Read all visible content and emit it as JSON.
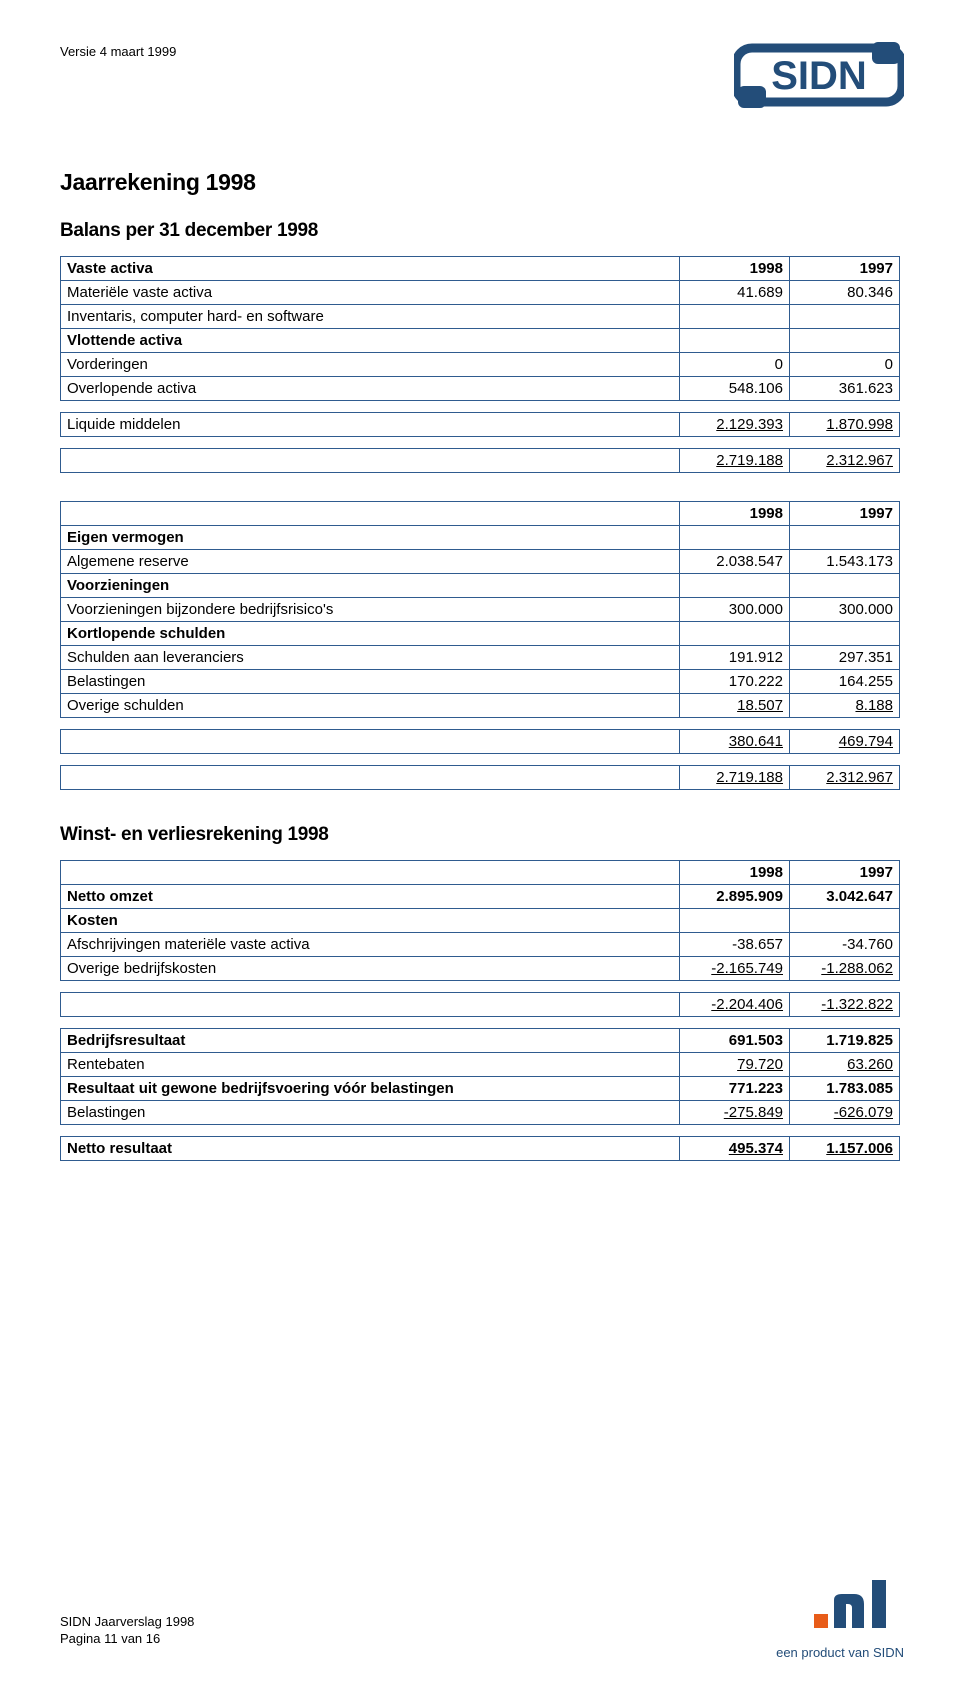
{
  "meta": {
    "version": "Versie 4 maart 1999",
    "footer_line1": "SIDN Jaarverslag 1998",
    "footer_line2": "Pagina 11 van 16",
    "title": "Jaarrekening 1998",
    "subtitle_balans": "Balans per 31 december 1998",
    "subtitle_wv": "Winst- en verliesrekening 1998",
    "logo_text": "SIDN",
    "bottom_logo": ".nl",
    "bottom_tagline": "een product van SIDN"
  },
  "colors": {
    "border": "#2f5b8f",
    "logo_blue": "#234d79",
    "text": "#000000",
    "bg": "#ffffff"
  },
  "balans1": {
    "col1": "1998",
    "col2": "1997",
    "rows": [
      {
        "label": "Vaste activa",
        "v1": "1998",
        "v2": "1997",
        "bold": true,
        "header": true
      },
      {
        "label": "Materiële vaste activa",
        "v1": "41.689",
        "v2": "80.346"
      },
      {
        "label": "Inventaris, computer hard- en software",
        "v1": "",
        "v2": ""
      },
      {
        "label": "Vlottende activa",
        "v1": "",
        "v2": "",
        "bold": true
      },
      {
        "label": "Vorderingen",
        "v1": "0",
        "v2": "0"
      },
      {
        "label": "Overlopende activa",
        "v1": "548.106",
        "v2": "361.623"
      },
      {
        "spacer": true
      },
      {
        "label": "Liquide middelen",
        "v1": "2.129.393",
        "v2": "1.870.998",
        "underline": true
      },
      {
        "spacer": true
      },
      {
        "label": "",
        "v1": "2.719.188",
        "v2": "2.312.967",
        "underline": true
      }
    ]
  },
  "balans2": {
    "rows": [
      {
        "label": "",
        "v1": "1998",
        "v2": "1997",
        "bold": true,
        "header": true
      },
      {
        "label": "Eigen vermogen",
        "v1": "",
        "v2": "",
        "bold": true
      },
      {
        "label": "Algemene reserve",
        "v1": "2.038.547",
        "v2": "1.543.173"
      },
      {
        "label": "Voorzieningen",
        "v1": "",
        "v2": "",
        "bold": true
      },
      {
        "label": "Voorzieningen bijzondere bedrijfsrisico's",
        "v1": "300.000",
        "v2": "300.000"
      },
      {
        "label": "Kortlopende schulden",
        "v1": "",
        "v2": "",
        "bold": true
      },
      {
        "label": "Schulden aan leveranciers",
        "v1": "191.912",
        "v2": "297.351"
      },
      {
        "label": "Belastingen",
        "v1": "170.222",
        "v2": "164.255"
      },
      {
        "label": "Overige schulden",
        "v1": "18.507",
        "v2": "8.188",
        "underline": true
      },
      {
        "spacer": true
      },
      {
        "label": "",
        "v1": "380.641",
        "v2": "469.794",
        "underline": true
      },
      {
        "spacer": true
      },
      {
        "label": "",
        "v1": "2.719.188",
        "v2": "2.312.967",
        "underline": true
      }
    ]
  },
  "wv": {
    "rows": [
      {
        "label": "",
        "v1": "1998",
        "v2": "1997",
        "bold": true,
        "header": true
      },
      {
        "label": "Netto omzet",
        "v1": "2.895.909",
        "v2": "3.042.647",
        "bold": true
      },
      {
        "label": "Kosten",
        "v1": "",
        "v2": "",
        "bold": true
      },
      {
        "label": "Afschrijvingen materiële vaste activa",
        "v1": "-38.657",
        "v2": "-34.760"
      },
      {
        "label": "Overige bedrijfskosten",
        "v1": "-2.165.749",
        "v2": "-1.288.062",
        "underline": true
      },
      {
        "spacer": true
      },
      {
        "label": "",
        "v1": "-2.204.406",
        "v2": "-1.322.822",
        "underline": true
      },
      {
        "spacer": true
      },
      {
        "label": "Bedrijfsresultaat",
        "v1": "691.503",
        "v2": "1.719.825",
        "bold": true
      },
      {
        "label": "Rentebaten",
        "v1": "79.720",
        "v2": "63.260",
        "underline": true
      },
      {
        "label": "Resultaat uit gewone bedrijfsvoering vóór belastingen",
        "v1": "771.223",
        "v2": "1.783.085",
        "bold": true
      },
      {
        "label": "Belastingen",
        "v1": "-275.849",
        "v2": "-626.079",
        "underline": true
      },
      {
        "spacer": true
      },
      {
        "label": "Netto resultaat",
        "v1": "495.374",
        "v2": "1.157.006",
        "bold": true,
        "underline": true
      }
    ]
  }
}
